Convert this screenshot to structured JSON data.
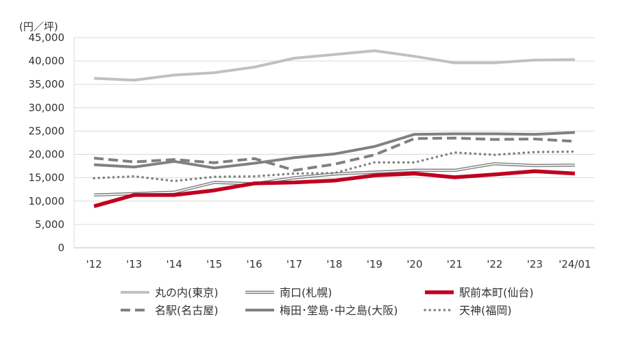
{
  "chart_data": {
    "type": "line",
    "title": "",
    "unit_label": "(円／坪)",
    "xlabel": "",
    "ylabel": "",
    "ylim": [
      0,
      45000
    ],
    "grid": true,
    "legend_position": "bottom",
    "categories": [
      "'12",
      "'13",
      "'14",
      "'15",
      "'16",
      "'17",
      "'18",
      "'19",
      "'20",
      "'21",
      "'22",
      "'23",
      "'24/01"
    ],
    "y_ticks": [
      {
        "value": 0,
        "label": "0"
      },
      {
        "value": 5000,
        "label": "5,000"
      },
      {
        "value": 10000,
        "label": "10,000"
      },
      {
        "value": 15000,
        "label": "15,000"
      },
      {
        "value": 20000,
        "label": "20,000"
      },
      {
        "value": 25000,
        "label": "25,000"
      },
      {
        "value": 30000,
        "label": "30,000"
      },
      {
        "value": 35000,
        "label": "35,000"
      },
      {
        "value": 40000,
        "label": "40,000"
      },
      {
        "value": 45000,
        "label": "45,000"
      }
    ],
    "series": [
      {
        "name": "丸の内(東京)",
        "color": "#c0c0c0",
        "style": "solid",
        "values": [
          36300,
          35900,
          37000,
          37500,
          38700,
          40600,
          41400,
          42200,
          41000,
          39600,
          39600,
          40200,
          40300
        ]
      },
      {
        "name": "南口(札幌)",
        "color": "#7f7f7f",
        "style": "double",
        "values": [
          11300,
          11600,
          11900,
          14000,
          13700,
          15000,
          15800,
          16200,
          16600,
          16600,
          18000,
          17600,
          17700
        ]
      },
      {
        "name": "駅前本町(仙台)",
        "color": "#c00020",
        "style": "thick",
        "values": [
          8900,
          11300,
          11300,
          12300,
          13800,
          14000,
          14400,
          15500,
          15900,
          15100,
          15700,
          16400,
          15900
        ]
      },
      {
        "name": "名駅(名古屋)",
        "color": "#808080",
        "style": "dashed",
        "values": [
          19200,
          18400,
          18900,
          18200,
          19100,
          16600,
          17900,
          19900,
          23400,
          23500,
          23200,
          23300,
          22800
        ]
      },
      {
        "name": "梅田･堂島･中之島(大阪)",
        "color": "#808080",
        "style": "solid",
        "values": [
          17800,
          17300,
          18500,
          17100,
          18100,
          19300,
          20100,
          21700,
          24300,
          24400,
          24400,
          24300,
          24700
        ]
      },
      {
        "name": "天神(福岡)",
        "color": "#808080",
        "style": "dotted",
        "values": [
          14900,
          15300,
          14300,
          15200,
          15300,
          15900,
          16000,
          18300,
          18300,
          20400,
          19900,
          20500,
          20600
        ]
      }
    ]
  }
}
